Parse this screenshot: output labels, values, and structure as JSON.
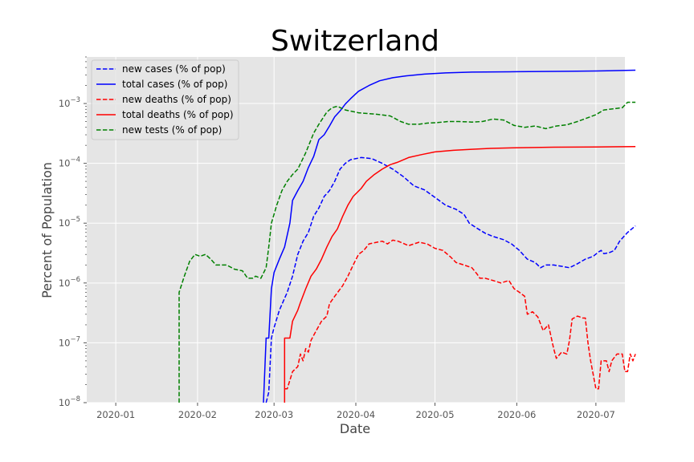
{
  "chart_data": {
    "type": "line",
    "title": "Switzerland",
    "xlabel": "Date",
    "ylabel": "Percent of Population",
    "yscale": "log",
    "ylim": [
      1e-08,
      0.006
    ],
    "xlim": [
      "2019-12-21",
      "2020-07-12"
    ],
    "grid": true,
    "legend_position": "top-left",
    "x_ticks": [
      "2020-01",
      "2020-02",
      "2020-03",
      "2020-04",
      "2020-05",
      "2020-06",
      "2020-07"
    ],
    "y_ticks": [
      {
        "value": 1e-08,
        "base": "10",
        "exp": "−8"
      },
      {
        "value": 1e-07,
        "base": "10",
        "exp": "−7"
      },
      {
        "value": 1e-06,
        "base": "10",
        "exp": "−6"
      },
      {
        "value": 1e-05,
        "base": "10",
        "exp": "−5"
      },
      {
        "value": 0.0001,
        "base": "10",
        "exp": "−4"
      },
      {
        "value": 0.001,
        "base": "10",
        "exp": "−3"
      }
    ],
    "series": [
      {
        "name": "new cases (% of pop)",
        "color": "#0000ff",
        "dash": "dashed",
        "points": [
          [
            "2020-02-27",
            1e-08
          ],
          [
            "2020-02-28",
            1.5e-08
          ],
          [
            "2020-02-29",
            1.2e-07
          ],
          [
            "2020-03-01",
            1.8e-07
          ],
          [
            "2020-03-03",
            3.5e-07
          ],
          [
            "2020-03-06",
            7e-07
          ],
          [
            "2020-03-08",
            1.3e-06
          ],
          [
            "2020-03-10",
            3e-06
          ],
          [
            "2020-03-12",
            5e-06
          ],
          [
            "2020-03-14",
            7e-06
          ],
          [
            "2020-03-16",
            1.3e-05
          ],
          [
            "2020-03-18",
            1.8e-05
          ],
          [
            "2020-03-20",
            2.8e-05
          ],
          [
            "2020-03-22",
            3.5e-05
          ],
          [
            "2020-03-24",
            5e-05
          ],
          [
            "2020-03-26",
            8e-05
          ],
          [
            "2020-03-28",
            0.0001
          ],
          [
            "2020-03-30",
            0.000115
          ],
          [
            "2020-04-03",
            0.000125
          ],
          [
            "2020-04-07",
            0.00012
          ],
          [
            "2020-04-11",
            0.0001
          ],
          [
            "2020-04-15",
            8e-05
          ],
          [
            "2020-04-19",
            6e-05
          ],
          [
            "2020-04-23",
            4.2e-05
          ],
          [
            "2020-04-27",
            3.6e-05
          ],
          [
            "2020-05-01",
            2.7e-05
          ],
          [
            "2020-05-05",
            2e-05
          ],
          [
            "2020-05-09",
            1.7e-05
          ],
          [
            "2020-05-12",
            1.4e-05
          ],
          [
            "2020-05-14",
            1e-05
          ],
          [
            "2020-05-17",
            8.2e-06
          ],
          [
            "2020-05-20",
            6.8e-06
          ],
          [
            "2020-05-23",
            6e-06
          ],
          [
            "2020-05-27",
            5.3e-06
          ],
          [
            "2020-05-30",
            4.5e-06
          ],
          [
            "2020-06-02",
            3.5e-06
          ],
          [
            "2020-06-05",
            2.5e-06
          ],
          [
            "2020-06-08",
            2.2e-06
          ],
          [
            "2020-06-10",
            1.8e-06
          ],
          [
            "2020-06-12",
            2e-06
          ],
          [
            "2020-06-15",
            2e-06
          ],
          [
            "2020-06-18",
            1.9e-06
          ],
          [
            "2020-06-21",
            1.8e-06
          ],
          [
            "2020-06-24",
            2.1e-06
          ],
          [
            "2020-06-27",
            2.5e-06
          ],
          [
            "2020-06-30",
            2.8e-06
          ],
          [
            "2020-07-02",
            3.3e-06
          ],
          [
            "2020-07-03",
            3.5e-06
          ],
          [
            "2020-07-04",
            3.1e-06
          ],
          [
            "2020-07-06",
            3.2e-06
          ],
          [
            "2020-07-08",
            3.5e-06
          ],
          [
            "2020-07-10",
            5e-06
          ],
          [
            "2020-07-13",
            7e-06
          ],
          [
            "2020-07-16",
            9e-06
          ]
        ]
      },
      {
        "name": "total cases (% of pop)",
        "color": "#0000ff",
        "dash": "solid",
        "points": [
          [
            "2020-02-26",
            1e-08
          ],
          [
            "2020-02-27",
            1.2e-07
          ],
          [
            "2020-02-28",
            1.2e-07
          ],
          [
            "2020-02-29",
            8e-07
          ],
          [
            "2020-03-01",
            1.5e-06
          ],
          [
            "2020-03-03",
            2.5e-06
          ],
          [
            "2020-03-05",
            4e-06
          ],
          [
            "2020-03-07",
            1e-05
          ],
          [
            "2020-03-08",
            2.4e-05
          ],
          [
            "2020-03-10",
            3.5e-05
          ],
          [
            "2020-03-12",
            5e-05
          ],
          [
            "2020-03-14",
            8.5e-05
          ],
          [
            "2020-03-16",
            0.00013
          ],
          [
            "2020-03-18",
            0.00025
          ],
          [
            "2020-03-20",
            0.0003
          ],
          [
            "2020-03-22",
            0.00042
          ],
          [
            "2020-03-24",
            0.0006
          ],
          [
            "2020-03-26",
            0.00075
          ],
          [
            "2020-03-28",
            0.00098
          ],
          [
            "2020-03-30",
            0.0012
          ],
          [
            "2020-04-02",
            0.0016
          ],
          [
            "2020-04-06",
            0.002
          ],
          [
            "2020-04-10",
            0.0024
          ],
          [
            "2020-04-15",
            0.0027
          ],
          [
            "2020-04-20",
            0.0029
          ],
          [
            "2020-04-27",
            0.0031
          ],
          [
            "2020-05-05",
            0.00325
          ],
          [
            "2020-05-15",
            0.00335
          ],
          [
            "2020-06-01",
            0.0034
          ],
          [
            "2020-06-20",
            0.00345
          ],
          [
            "2020-07-01",
            0.0035
          ],
          [
            "2020-07-16",
            0.0036
          ]
        ]
      },
      {
        "name": "new deaths (% of pop)",
        "color": "#ff0000",
        "dash": "dashed",
        "points": [
          [
            "2020-03-05",
            1.7e-08
          ],
          [
            "2020-03-06",
            1.7e-08
          ],
          [
            "2020-03-08",
            3.3e-08
          ],
          [
            "2020-03-10",
            4e-08
          ],
          [
            "2020-03-11",
            6.5e-08
          ],
          [
            "2020-03-12",
            5e-08
          ],
          [
            "2020-03-13",
            8e-08
          ],
          [
            "2020-03-14",
            7e-08
          ],
          [
            "2020-03-15",
            1.1e-07
          ],
          [
            "2020-03-17",
            1.6e-07
          ],
          [
            "2020-03-19",
            2.3e-07
          ],
          [
            "2020-03-21",
            2.8e-07
          ],
          [
            "2020-03-22",
            4.5e-07
          ],
          [
            "2020-03-24",
            6e-07
          ],
          [
            "2020-03-27",
            9e-07
          ],
          [
            "2020-03-29",
            1.3e-06
          ],
          [
            "2020-03-31",
            2e-06
          ],
          [
            "2020-04-02",
            3e-06
          ],
          [
            "2020-04-04",
            3.5e-06
          ],
          [
            "2020-04-06",
            4.5e-06
          ],
          [
            "2020-04-09",
            4.8e-06
          ],
          [
            "2020-04-11",
            5e-06
          ],
          [
            "2020-04-13",
            4.5e-06
          ],
          [
            "2020-04-15",
            5.2e-06
          ],
          [
            "2020-04-17",
            5e-06
          ],
          [
            "2020-04-19",
            4.6e-06
          ],
          [
            "2020-04-21",
            4.2e-06
          ],
          [
            "2020-04-23",
            4.5e-06
          ],
          [
            "2020-04-25",
            4.8e-06
          ],
          [
            "2020-04-28",
            4.5e-06
          ],
          [
            "2020-05-01",
            3.8e-06
          ],
          [
            "2020-05-04",
            3.5e-06
          ],
          [
            "2020-05-07",
            2.7e-06
          ],
          [
            "2020-05-09",
            2.2e-06
          ],
          [
            "2020-05-12",
            2e-06
          ],
          [
            "2020-05-15",
            1.8e-06
          ],
          [
            "2020-05-17",
            1.4e-06
          ],
          [
            "2020-05-18",
            1.2e-06
          ],
          [
            "2020-05-20",
            1.2e-06
          ],
          [
            "2020-05-23",
            1.1e-06
          ],
          [
            "2020-05-26",
            1e-06
          ],
          [
            "2020-05-29",
            1.1e-06
          ],
          [
            "2020-05-31",
            8e-07
          ],
          [
            "2020-06-02",
            7e-07
          ],
          [
            "2020-06-04",
            6e-07
          ],
          [
            "2020-06-05",
            3e-07
          ],
          [
            "2020-06-07",
            3.3e-07
          ],
          [
            "2020-06-09",
            2.7e-07
          ],
          [
            "2020-06-11",
            1.6e-07
          ],
          [
            "2020-06-13",
            2e-07
          ],
          [
            "2020-06-15",
            8e-08
          ],
          [
            "2020-06-16",
            5.5e-08
          ],
          [
            "2020-06-18",
            7e-08
          ],
          [
            "2020-06-20",
            6.5e-08
          ],
          [
            "2020-06-21",
            1.1e-07
          ],
          [
            "2020-06-22",
            2.5e-07
          ],
          [
            "2020-06-24",
            2.8e-07
          ],
          [
            "2020-06-26",
            2.6e-07
          ],
          [
            "2020-06-27",
            2.6e-07
          ],
          [
            "2020-06-28",
            1e-07
          ],
          [
            "2020-06-29",
            5e-08
          ],
          [
            "2020-07-01",
            1.7e-08
          ],
          [
            "2020-07-02",
            1.7e-08
          ],
          [
            "2020-07-03",
            5e-08
          ],
          [
            "2020-07-05",
            5e-08
          ],
          [
            "2020-07-06",
            3.3e-08
          ],
          [
            "2020-07-07",
            5e-08
          ],
          [
            "2020-07-09",
            6.5e-08
          ],
          [
            "2020-07-11",
            6.5e-08
          ],
          [
            "2020-07-12",
            3.3e-08
          ],
          [
            "2020-07-13",
            3.3e-08
          ],
          [
            "2020-07-14",
            6.5e-08
          ],
          [
            "2020-07-15",
            5e-08
          ],
          [
            "2020-07-16",
            6.5e-08
          ]
        ]
      },
      {
        "name": "total deaths (% of pop)",
        "color": "#ff0000",
        "dash": "solid",
        "points": [
          [
            "2020-03-05",
            1e-08
          ],
          [
            "2020-03-05",
            1.2e-07
          ],
          [
            "2020-03-07",
            1.2e-07
          ],
          [
            "2020-03-08",
            2.3e-07
          ],
          [
            "2020-03-10",
            3.5e-07
          ],
          [
            "2020-03-11",
            4.7e-07
          ],
          [
            "2020-03-13",
            8e-07
          ],
          [
            "2020-03-15",
            1.3e-06
          ],
          [
            "2020-03-17",
            1.7e-06
          ],
          [
            "2020-03-19",
            2.5e-06
          ],
          [
            "2020-03-21",
            4e-06
          ],
          [
            "2020-03-23",
            6e-06
          ],
          [
            "2020-03-25",
            8e-06
          ],
          [
            "2020-03-27",
            1.3e-05
          ],
          [
            "2020-03-29",
            2e-05
          ],
          [
            "2020-03-31",
            2.8e-05
          ],
          [
            "2020-04-03",
            3.8e-05
          ],
          [
            "2020-04-05",
            5e-05
          ],
          [
            "2020-04-08",
            6.5e-05
          ],
          [
            "2020-04-11",
            8e-05
          ],
          [
            "2020-04-14",
            9.5e-05
          ],
          [
            "2020-04-17",
            0.000105
          ],
          [
            "2020-04-21",
            0.000125
          ],
          [
            "2020-04-26",
            0.00014
          ],
          [
            "2020-05-01",
            0.000155
          ],
          [
            "2020-05-08",
            0.000165
          ],
          [
            "2020-05-15",
            0.000172
          ],
          [
            "2020-05-22",
            0.000178
          ],
          [
            "2020-06-01",
            0.000182
          ],
          [
            "2020-06-15",
            0.000186
          ],
          [
            "2020-07-01",
            0.000188
          ],
          [
            "2020-07-16",
            0.00019
          ]
        ]
      },
      {
        "name": "new tests (% of pop)",
        "color": "#008000",
        "dash": "dashed",
        "points": [
          [
            "2020-01-25",
            1e-08
          ],
          [
            "2020-01-25",
            7e-07
          ],
          [
            "2020-01-27",
            1.3e-06
          ],
          [
            "2020-01-29",
            2.3e-06
          ],
          [
            "2020-01-31",
            3e-06
          ],
          [
            "2020-02-02",
            2.8e-06
          ],
          [
            "2020-02-04",
            3e-06
          ],
          [
            "2020-02-06",
            2.5e-06
          ],
          [
            "2020-02-08",
            2e-06
          ],
          [
            "2020-02-12",
            2e-06
          ],
          [
            "2020-02-15",
            1.7e-06
          ],
          [
            "2020-02-18",
            1.6e-06
          ],
          [
            "2020-02-20",
            1.2e-06
          ],
          [
            "2020-02-22",
            1.2e-06
          ],
          [
            "2020-02-23",
            1.3e-06
          ],
          [
            "2020-02-25",
            1.2e-06
          ],
          [
            "2020-02-27",
            1.8e-06
          ],
          [
            "2020-02-28",
            4e-06
          ],
          [
            "2020-02-29",
            1e-05
          ],
          [
            "2020-03-02",
            2e-05
          ],
          [
            "2020-03-04",
            3.5e-05
          ],
          [
            "2020-03-06",
            5e-05
          ],
          [
            "2020-03-08",
            6.5e-05
          ],
          [
            "2020-03-10",
            8e-05
          ],
          [
            "2020-03-13",
            0.00015
          ],
          [
            "2020-03-16",
            0.00032
          ],
          [
            "2020-03-18",
            0.00045
          ],
          [
            "2020-03-21",
            0.00072
          ],
          [
            "2020-03-23",
            0.00085
          ],
          [
            "2020-03-25",
            0.0009
          ],
          [
            "2020-03-28",
            0.00078
          ],
          [
            "2020-04-02",
            0.0007
          ],
          [
            "2020-04-09",
            0.00066
          ],
          [
            "2020-04-14",
            0.00062
          ],
          [
            "2020-04-18",
            0.0005
          ],
          [
            "2020-04-21",
            0.00045
          ],
          [
            "2020-04-25",
            0.00045
          ],
          [
            "2020-04-28",
            0.00047
          ],
          [
            "2020-05-02",
            0.00048
          ],
          [
            "2020-05-06",
            0.0005
          ],
          [
            "2020-05-10",
            0.0005
          ],
          [
            "2020-05-15",
            0.00049
          ],
          [
            "2020-05-19",
            0.0005
          ],
          [
            "2020-05-23",
            0.00055
          ],
          [
            "2020-05-27",
            0.00053
          ],
          [
            "2020-05-31",
            0.00043
          ],
          [
            "2020-06-04",
            0.0004
          ],
          [
            "2020-06-08",
            0.00042
          ],
          [
            "2020-06-12",
            0.00038
          ],
          [
            "2020-06-16",
            0.00042
          ],
          [
            "2020-06-20",
            0.00044
          ],
          [
            "2020-06-24",
            0.0005
          ],
          [
            "2020-06-28",
            0.00058
          ],
          [
            "2020-07-01",
            0.00065
          ],
          [
            "2020-07-04",
            0.00078
          ],
          [
            "2020-07-08",
            0.00082
          ],
          [
            "2020-07-11",
            0.00085
          ],
          [
            "2020-07-13",
            0.00105
          ],
          [
            "2020-07-16",
            0.00105
          ]
        ]
      }
    ]
  }
}
